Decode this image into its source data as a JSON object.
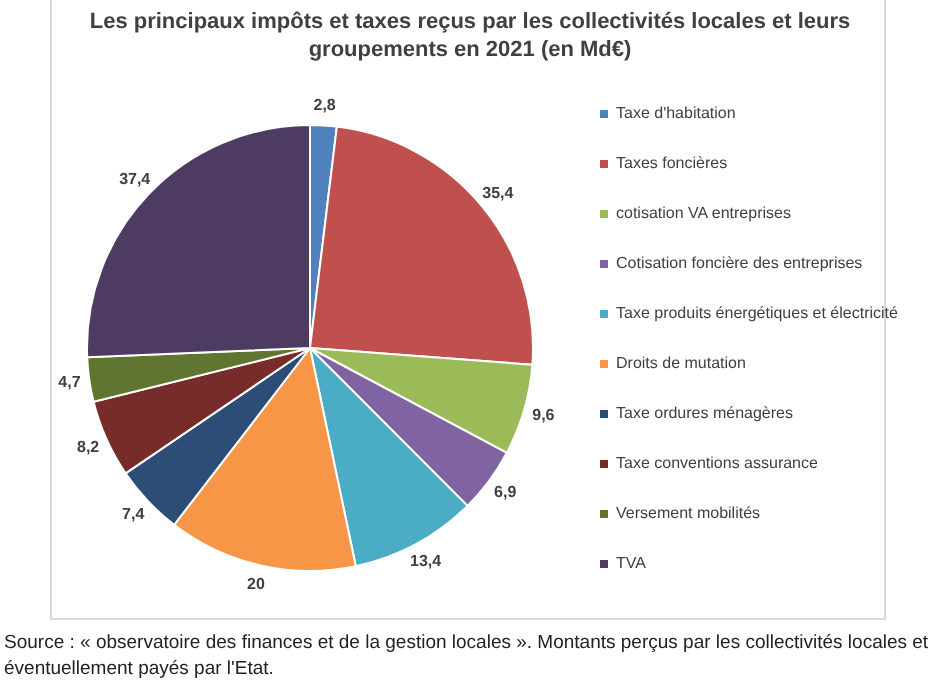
{
  "chart_data": {
    "type": "pie",
    "title": "Les principaux  impôts et taxes reçus par les collectivités locales et leurs groupements en 2021 (en Md€)",
    "categories": [
      "Taxe d'habitation",
      "Taxes foncières",
      "cotisation VA entreprises",
      "Cotisation foncière des entreprises",
      "Taxe produits énergétiques et électricité",
      "Droits de mutation",
      "Taxe ordures ménagères",
      "Taxe conventions assurance",
      "Versement mobilités",
      "TVA"
    ],
    "values": [
      2.8,
      35.4,
      9.6,
      6.9,
      13.4,
      20,
      7.4,
      8.2,
      4.7,
      37.4
    ],
    "value_labels": [
      "2,8",
      "35,4",
      "9,6",
      "6,9",
      "13,4",
      "20",
      "7,4",
      "8,2",
      "4,7",
      "37,4"
    ],
    "colors": [
      "#4f81bd",
      "#c0504d",
      "#9bbb59",
      "#8064a2",
      "#4bacc6",
      "#f79646",
      "#2c4d75",
      "#772c2a",
      "#5f7530",
      "#4d3b62"
    ],
    "legend": "right",
    "annotations": [
      "Source : « observatoire des finances et de la gestion locales ». Montants perçus par les collectivités locales et éventuellement payés par l'Etat."
    ]
  }
}
